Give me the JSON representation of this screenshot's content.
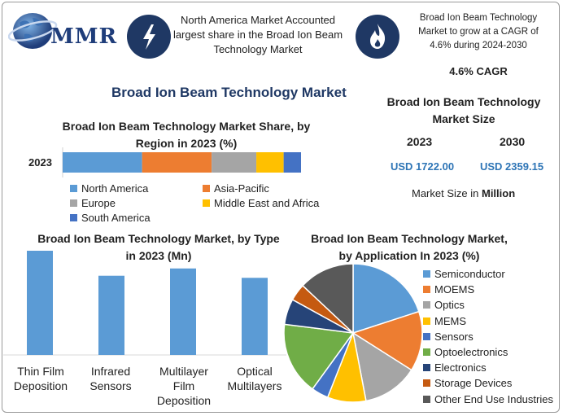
{
  "logo": {
    "text": "MMR"
  },
  "header": {
    "market_text": "North America Market Accounted largest share in the Broad Ion Beam Technology Market",
    "cagr_text": "Broad Ion Beam Technology Market to grow at a CAGR of 4.6% during 2024-2030",
    "cagr_value": "4.6% CAGR"
  },
  "main_title": "Broad Ion Beam Technology Market",
  "market_size": {
    "title": "Broad Ion Beam Technology Market Size",
    "year1": "2023",
    "year2": "2030",
    "value1": "USD 1722.00",
    "value2": "USD 2359.15",
    "unit_prefix": "Market Size in ",
    "unit_bold": "Million"
  },
  "colors": {
    "blue": "#5b9bd5",
    "orange": "#ed7d31",
    "gray": "#a5a5a5",
    "yellow": "#ffc000",
    "darkblue": "#4472c4",
    "green": "#70ad47",
    "darkorange": "#c55a11",
    "darkgray": "#595959",
    "navy": "#1f3864"
  },
  "icons": [
    "globe-icon",
    "lightning-icon",
    "flame-icon"
  ],
  "chart_data": [
    {
      "type": "bar",
      "title": "Broad Ion Beam Technology Market Share, by Region in 2023 (%)",
      "orientation": "horizontal-stacked",
      "categories": [
        "2023"
      ],
      "series": [
        {
          "name": "North America",
          "values": [
            32
          ]
        },
        {
          "name": "Asia-Pacific",
          "values": [
            28
          ]
        },
        {
          "name": "Europe",
          "values": [
            18
          ]
        },
        {
          "name": "Middle East and Africa",
          "values": [
            11
          ]
        },
        {
          "name": "South America",
          "values": [
            7
          ]
        }
      ],
      "legend": "bottom"
    },
    {
      "type": "bar",
      "title": "Broad Ion Beam Technology Market, by Type in 2023 (Mn)",
      "categories": [
        "Thin Film Deposition",
        "Infrared Sensors",
        "Multilayer Film Deposition",
        "Optical Multilayers"
      ],
      "values": [
        100,
        76,
        83,
        74
      ]
    },
    {
      "type": "pie",
      "title": "Broad Ion Beam Technology Market, by Application In 2023 (%)",
      "labels": [
        "Semiconductor",
        "MOEMS",
        "Optics",
        "MEMS",
        "Sensors",
        "Optoelectronics",
        "Electronics",
        "Storage Devices",
        "Other End Use Industries"
      ],
      "values": [
        20,
        14,
        13,
        9,
        4,
        17,
        6,
        4,
        13
      ],
      "legend": "right"
    }
  ]
}
